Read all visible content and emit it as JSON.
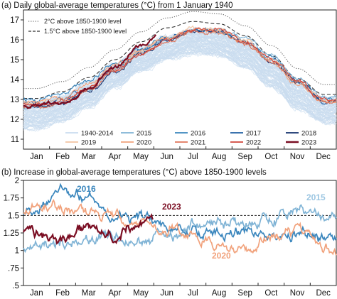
{
  "colors": {
    "faint_years": "#c9dcef",
    "y2015": "#7fb3d5",
    "y2016": "#3a86bd",
    "y2017": "#1f5fa3",
    "y2018": "#13306b",
    "y2019": "#f2c4a2",
    "y2020": "#f1a27c",
    "y2021": "#e0755a",
    "y2022": "#d0443a",
    "y2023": "#7a0d22",
    "ref2": "#666666",
    "ref15": "#333333"
  },
  "chart_data": [
    {
      "type": "line",
      "title": "(a) Daily global-average temperatures (°C) from 1 January 1940",
      "x_tick_labels": [
        "Jan",
        "Feb",
        "Mar",
        "Apr",
        "May",
        "Jun",
        "Jul",
        "Aug",
        "Sep",
        "Oct",
        "Nov",
        "Dec"
      ],
      "ylim": [
        10.5,
        17.5
      ],
      "y_ticks": [
        11,
        12,
        13,
        14,
        15,
        16,
        17
      ],
      "grid": false,
      "reference_lines": [
        {
          "name": "2°C above 1850-1900 level",
          "style": "dotted",
          "values": [
            13.55,
            13.9,
            14.6,
            15.5,
            16.4,
            17.1,
            17.42,
            17.3,
            16.7,
            15.7,
            14.55,
            13.75
          ]
        },
        {
          "name": "1.5°C above 1850-1900 level",
          "style": "dashed",
          "values": [
            13.05,
            13.4,
            14.1,
            15.0,
            15.9,
            16.6,
            16.92,
            16.8,
            16.2,
            15.2,
            14.05,
            13.25
          ]
        }
      ],
      "legend": {
        "placement": "bottom",
        "entries": [
          "1940-2014",
          "2015",
          "2016",
          "2017",
          "2018",
          "2019",
          "2020",
          "2021",
          "2022",
          "2023"
        ]
      },
      "envelope_1940_2014": {
        "upper": [
          12.9,
          13.2,
          13.9,
          14.8,
          15.6,
          16.2,
          16.5,
          16.4,
          15.9,
          15.0,
          13.9,
          13.1
        ],
        "lower": [
          11.5,
          11.9,
          12.6,
          13.6,
          14.4,
          15.0,
          15.3,
          15.2,
          14.6,
          13.6,
          12.5,
          11.8
        ]
      },
      "series": [
        {
          "name": "2015",
          "values": [
            12.6,
            12.9,
            13.5,
            14.5,
            15.4,
            16.0,
            16.5,
            16.5,
            16.1,
            15.2,
            14.0,
            13.1
          ]
        },
        {
          "name": "2016",
          "values": [
            13.0,
            13.3,
            14.0,
            14.8,
            15.6,
            16.1,
            16.5,
            16.4,
            15.9,
            15.1,
            13.9,
            13.0
          ]
        },
        {
          "name": "2017",
          "values": [
            12.8,
            13.0,
            13.6,
            14.6,
            15.4,
            16.1,
            16.5,
            16.4,
            15.9,
            15.0,
            13.9,
            12.9
          ]
        },
        {
          "name": "2018",
          "values": [
            12.6,
            12.8,
            13.4,
            14.4,
            15.3,
            16.0,
            16.4,
            16.4,
            15.8,
            14.9,
            13.8,
            12.9
          ]
        },
        {
          "name": "2019",
          "values": [
            12.8,
            13.0,
            13.6,
            14.6,
            15.5,
            16.1,
            16.6,
            16.5,
            15.9,
            15.0,
            13.9,
            13.0
          ]
        },
        {
          "name": "2020",
          "values": [
            12.9,
            13.1,
            13.8,
            14.7,
            15.5,
            16.1,
            16.5,
            16.4,
            15.8,
            14.9,
            13.8,
            12.9
          ]
        },
        {
          "name": "2021",
          "values": [
            12.6,
            12.8,
            13.4,
            14.4,
            15.3,
            15.9,
            16.4,
            16.4,
            15.8,
            14.9,
            13.8,
            12.9
          ]
        },
        {
          "name": "2022",
          "values": [
            12.7,
            12.9,
            13.5,
            14.5,
            15.3,
            16.0,
            16.5,
            16.5,
            15.9,
            15.0,
            13.9,
            13.0
          ]
        },
        {
          "name": "2023",
          "values": [
            12.7,
            12.8,
            13.5,
            14.7,
            15.7,
            16.6
          ]
        }
      ]
    },
    {
      "type": "line",
      "title": "(b) Increase in global-average temperatures (°C) above 1850-1900 levels",
      "x_tick_labels": [
        "Jan",
        "Feb",
        "Mar",
        "Apr",
        "May",
        "Jun",
        "Jul",
        "Aug",
        "Sep",
        "Oct",
        "Nov",
        "Dec"
      ],
      "ylim": [
        0.5,
        2.0
      ],
      "y_ticks": [
        0.5,
        0.75,
        1,
        1.25,
        1.5,
        1.75,
        2
      ],
      "y_tick_labels": [
        ".5",
        ".75",
        "1",
        "1.25",
        "1.5",
        "1.75",
        "2"
      ],
      "grid": false,
      "reference_lines": [
        {
          "name": "1.5°C",
          "style": "dashed",
          "values": [
            1.5
          ]
        }
      ],
      "annotations": [
        "2016",
        "2023",
        "2015",
        "2020"
      ],
      "series": [
        {
          "name": "2015",
          "values": [
            1.05,
            1.1,
            1.15,
            1.2,
            1.15,
            1.2,
            1.3,
            1.35,
            1.35,
            1.45,
            1.58,
            1.45
          ]
        },
        {
          "name": "2016",
          "values": [
            1.55,
            1.85,
            1.75,
            1.55,
            1.45,
            1.35,
            1.2,
            1.25,
            1.3,
            1.2,
            1.25,
            1.15
          ]
        },
        {
          "name": "2020",
          "values": [
            1.55,
            1.6,
            1.55,
            1.5,
            1.4,
            1.3,
            1.15,
            1.1,
            1.05,
            1.2,
            1.3,
            1.05
          ]
        },
        {
          "name": "2023",
          "values": [
            1.25,
            1.1,
            1.3,
            1.15,
            1.35,
            1.6
          ]
        }
      ]
    }
  ]
}
